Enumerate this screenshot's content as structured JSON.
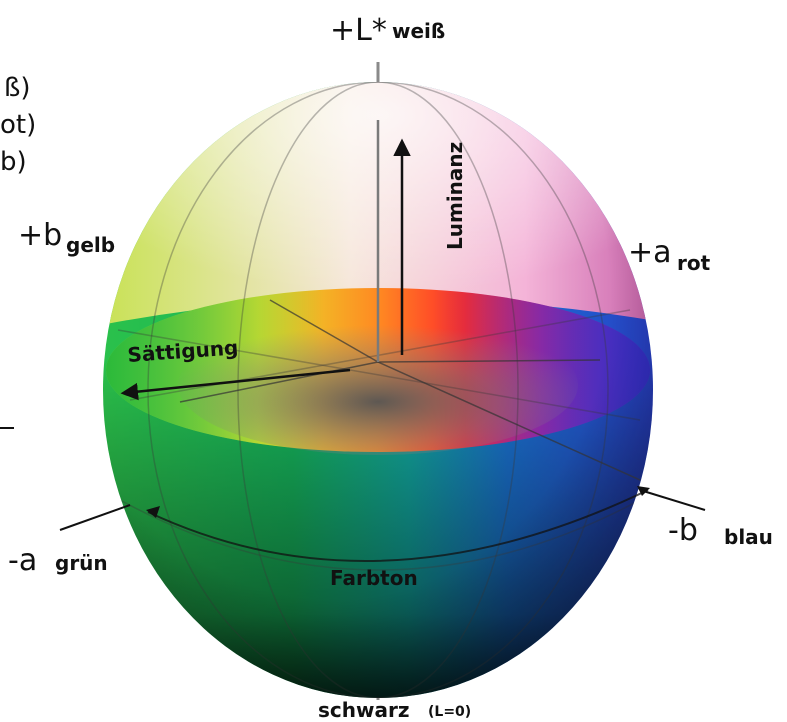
{
  "axes": {
    "top": {
      "main": "+L*",
      "sub": "weiß"
    },
    "right_a": {
      "main": "+a",
      "sub": "rot"
    },
    "left_b": {
      "main": "+b",
      "sub": "gelb"
    },
    "left_a": {
      "main": "-a",
      "sub": "grün"
    },
    "right_b": {
      "main": "-b",
      "sub": "blau"
    },
    "bottom": {
      "main": "schwarz",
      "sub": "(L=0)"
    }
  },
  "annotations": {
    "luminance": "Luminanz",
    "saturation": "Sättigung",
    "hue": "Farbton"
  },
  "cut_legend": [
    "ß)",
    "ot)",
    "b)"
  ],
  "colors": {
    "yellow": "#c8e23a",
    "red": "#ff2a1a",
    "magenta": "#e0208a",
    "blue": "#1e2ad8",
    "cyan": "#10c8c0",
    "green": "#12b43a",
    "white": "#ffffff",
    "black": "#0a0a0a"
  }
}
